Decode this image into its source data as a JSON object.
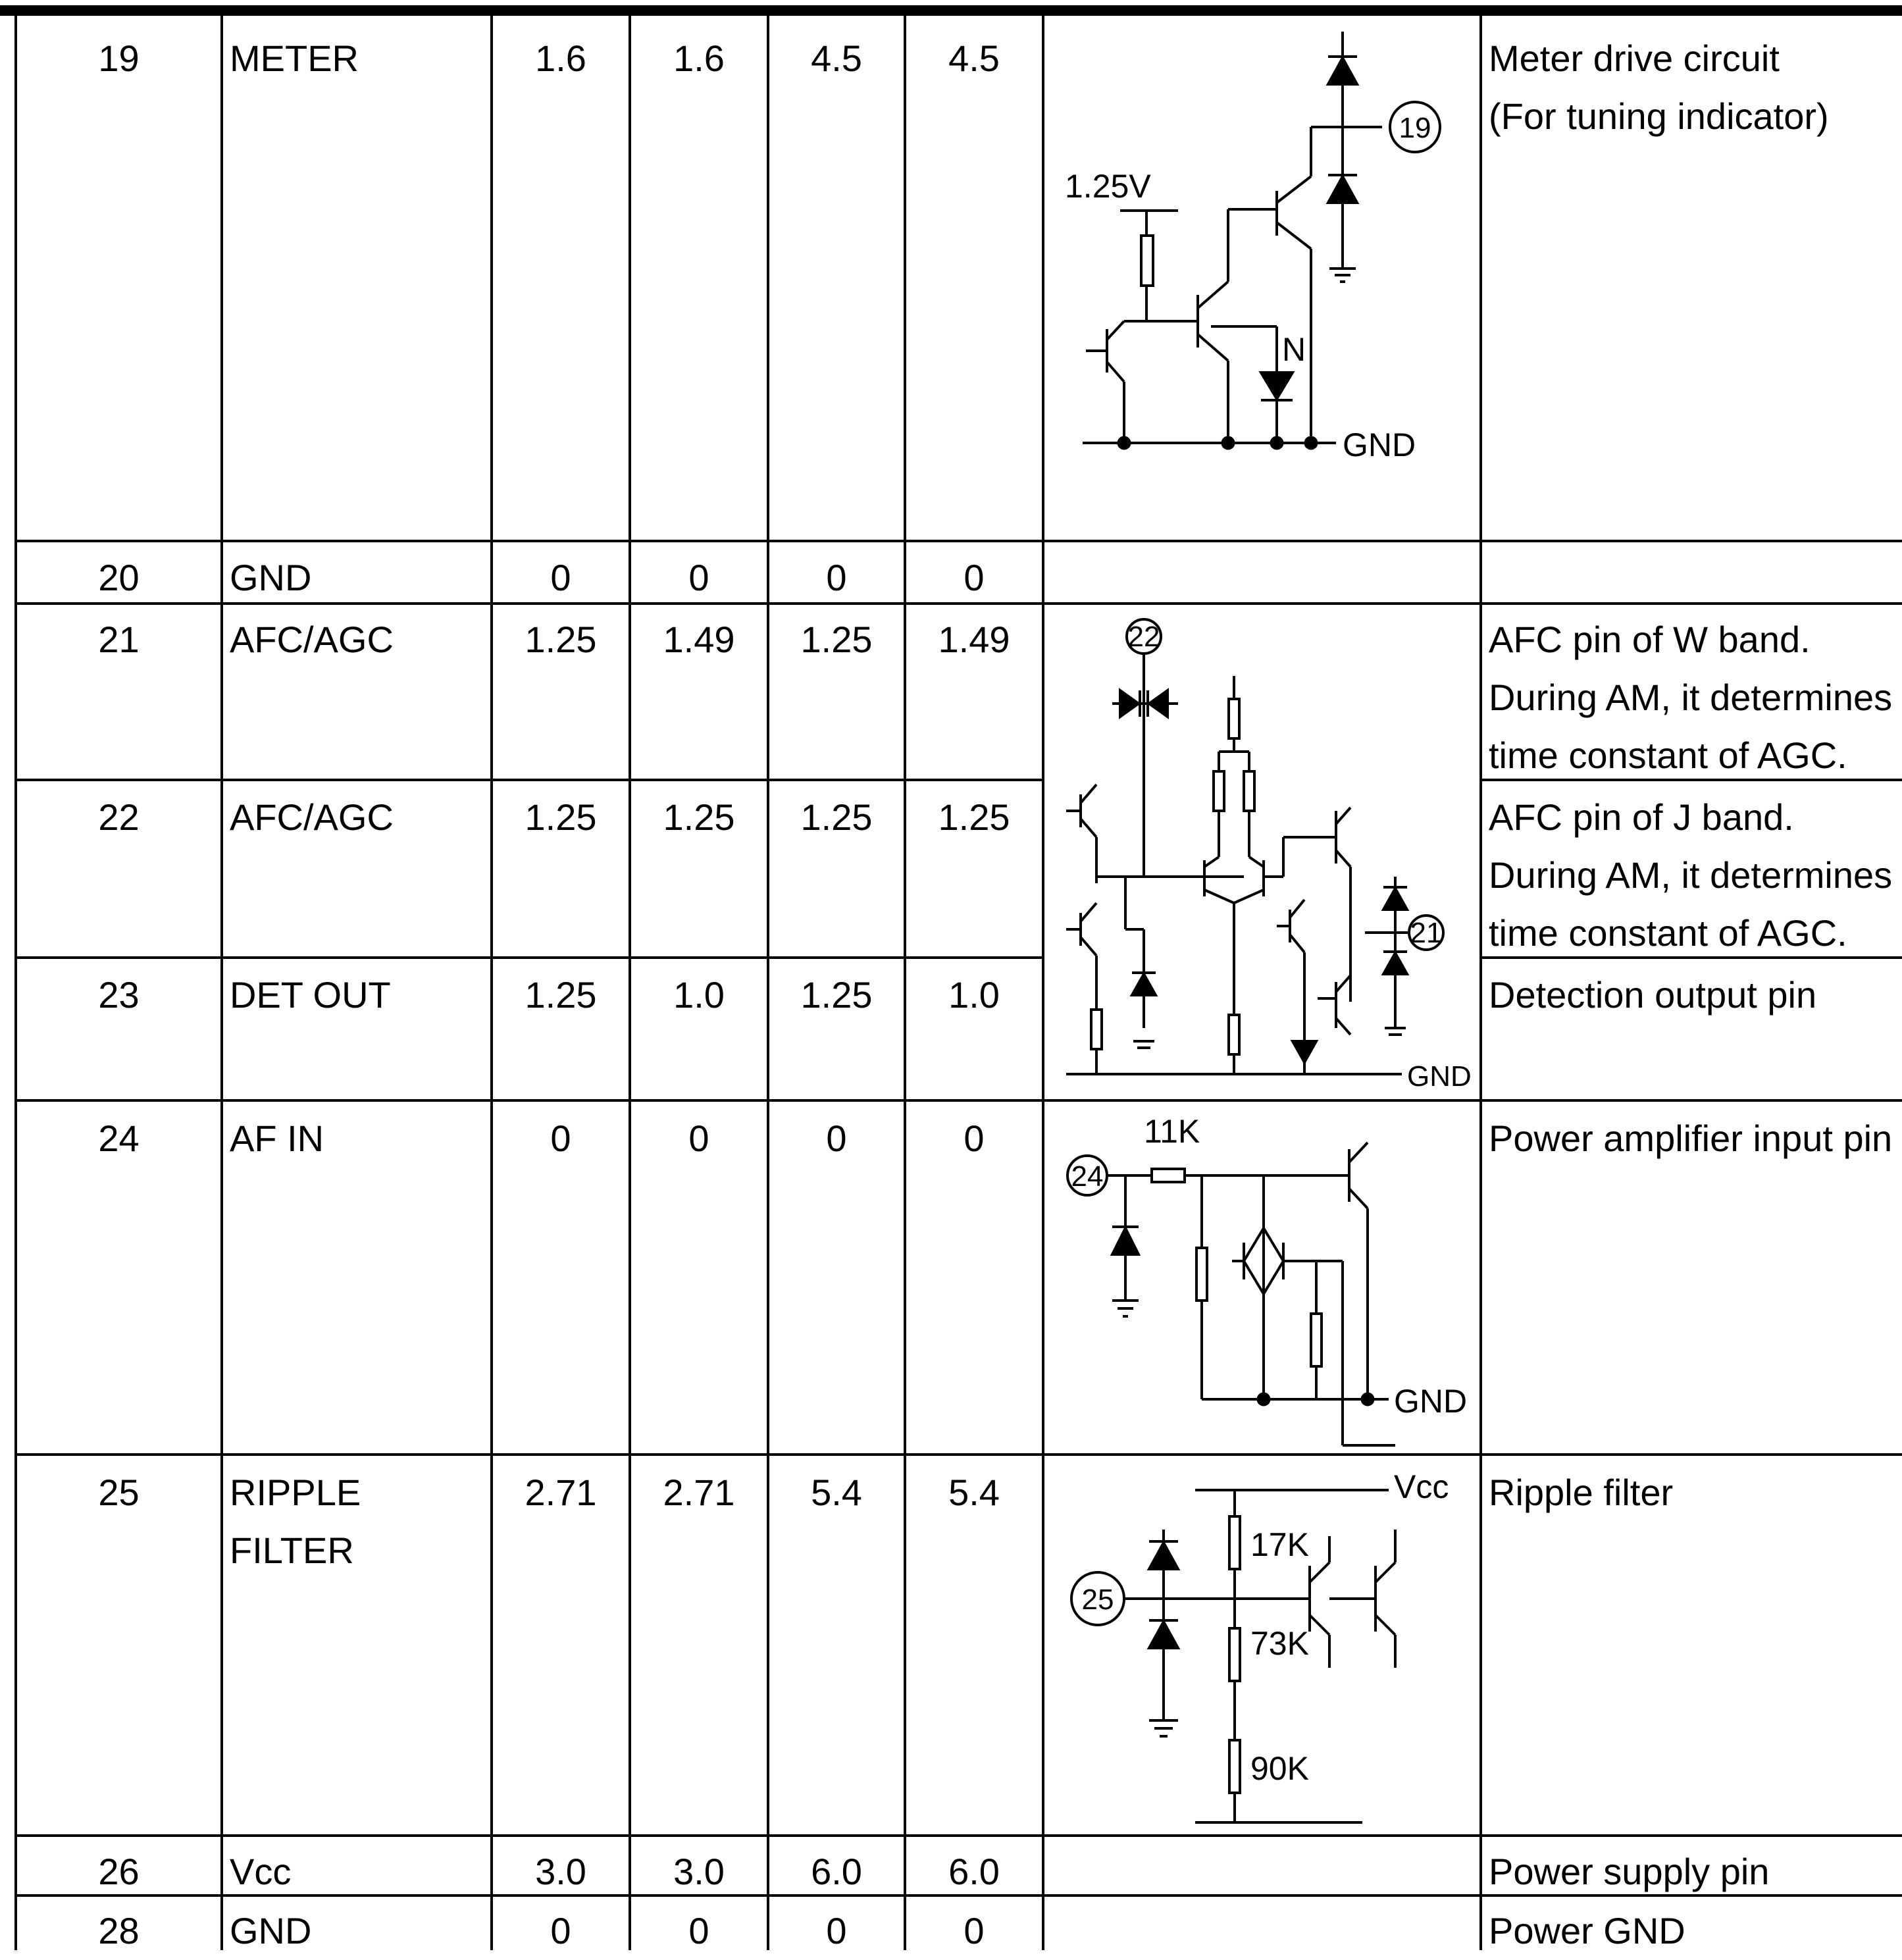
{
  "table": {
    "rows": [
      {
        "pin": "19",
        "name": "METER",
        "v1": "1.6",
        "v2": "1.6",
        "v3": "4.5",
        "v4": "4.5",
        "desc": "Meter drive circuit\n(For tuning indicator)"
      },
      {
        "pin": "20",
        "name": "GND",
        "v1": "0",
        "v2": "0",
        "v3": "0",
        "v4": "0",
        "desc": ""
      },
      {
        "pin": "21",
        "name": "AFC/AGC",
        "v1": "1.25",
        "v2": "1.49",
        "v3": "1.25",
        "v4": "1.49",
        "desc": "AFC pin of W band.\nDuring AM, it determines\ntime constant of AGC."
      },
      {
        "pin": "22",
        "name": "AFC/AGC",
        "v1": "1.25",
        "v2": "1.25",
        "v3": "1.25",
        "v4": "1.25",
        "desc": "AFC pin of J band.\nDuring AM, it determines\ntime constant of AGC."
      },
      {
        "pin": "23",
        "name": "DET OUT",
        "v1": "1.25",
        "v2": "1.0",
        "v3": "1.25",
        "v4": "1.0",
        "desc": "Detection output pin"
      },
      {
        "pin": "24",
        "name": "AF IN",
        "v1": "0",
        "v2": "0",
        "v3": "0",
        "v4": "0",
        "desc": "Power amplifier input pin"
      },
      {
        "pin": "25",
        "name": "RIPPLE\nFILTER",
        "v1": "2.71",
        "v2": "2.71",
        "v3": "5.4",
        "v4": "5.4",
        "desc": "Ripple filter"
      },
      {
        "pin": "26",
        "name": "Vcc",
        "v1": "3.0",
        "v2": "3.0",
        "v3": "6.0",
        "v4": "6.0",
        "desc": "Power supply pin"
      },
      {
        "pin": "28",
        "name": "GND",
        "v1": "0",
        "v2": "0",
        "v3": "0",
        "v4": "0",
        "desc": "Power GND"
      }
    ]
  },
  "diagrams": {
    "meter": {
      "voltage": "1.25V",
      "pin": "19",
      "node": "N",
      "ground": "GND"
    },
    "afc": {
      "pin_top": "22",
      "pin_right": "21",
      "ground": "GND"
    },
    "afin": {
      "pin": "24",
      "resistor": "11K",
      "ground": "GND"
    },
    "ripple": {
      "pin": "25",
      "supply": "Vcc",
      "r1": "17K",
      "r2": "73K",
      "r3": "90K"
    }
  }
}
